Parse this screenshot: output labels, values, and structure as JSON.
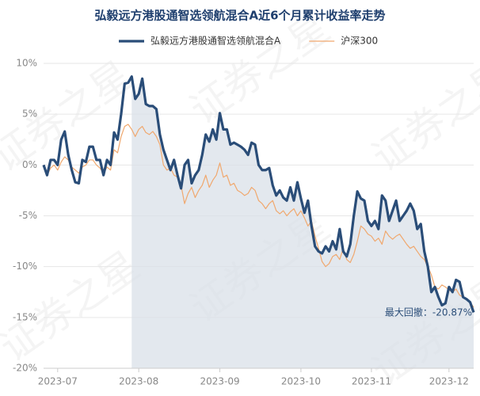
{
  "chart_data": {
    "type": "line",
    "title": "弘毅远方港股通智选领航混合A近6个月累计收益率走势",
    "watermark": "证券之星",
    "annotation": "最大回撤：-20.87%",
    "categories": [
      null,
      null,
      null,
      null,
      "2023-07",
      null,
      null,
      null,
      null,
      null,
      null,
      null,
      null,
      null,
      null,
      null,
      null,
      null,
      null,
      null,
      null,
      null,
      null,
      null,
      null,
      null,
      null,
      "2023-08",
      null,
      null,
      null,
      null,
      null,
      null,
      null,
      null,
      null,
      null,
      null,
      null,
      null,
      null,
      null,
      null,
      null,
      null,
      null,
      null,
      null,
      null,
      "2023-09",
      null,
      null,
      null,
      null,
      null,
      null,
      null,
      null,
      null,
      null,
      null,
      null,
      null,
      null,
      null,
      null,
      null,
      null,
      null,
      null,
      null,
      null,
      "2023-10",
      null,
      null,
      null,
      null,
      null,
      null,
      null,
      null,
      null,
      null,
      null,
      null,
      null,
      null,
      null,
      null,
      null,
      null,
      null,
      "2023-11",
      null,
      null,
      null,
      null,
      null,
      null,
      null,
      null,
      null,
      null,
      null,
      null,
      null,
      null,
      null,
      null,
      null,
      null,
      null,
      null,
      null,
      "2023-12",
      null,
      null,
      null,
      null,
      null,
      null,
      null
    ],
    "series": [
      {
        "name": "弘毅远方港股通智选领航混合A",
        "color": "#2a4d78",
        "width": 3.2,
        "values": [
          0,
          -1,
          0.5,
          0.5,
          0,
          2.5,
          3.3,
          1,
          -0.5,
          -1.7,
          -1.8,
          0.5,
          0.3,
          1.8,
          1.8,
          0.5,
          0.5,
          -1,
          0.5,
          0,
          3.2,
          2.5,
          5,
          8,
          8.1,
          8.7,
          6.5,
          7,
          8.5,
          6,
          5.8,
          5.8,
          5.5,
          3,
          1.5,
          0.5,
          -0.5,
          0.5,
          -1,
          -2.3,
          0,
          0.5,
          -1.8,
          -1,
          -0.5,
          1,
          3,
          2.3,
          3.5,
          2.5,
          5.1,
          3.5,
          3.5,
          2,
          2.2,
          2,
          1.8,
          1.5,
          1,
          2.2,
          2,
          0,
          -0.5,
          -0.5,
          -0.3,
          -2,
          -3,
          -2.5,
          -3.2,
          -3.5,
          -2.2,
          -3.5,
          -1.7,
          -3.3,
          -4.7,
          -3.5,
          -6,
          -8,
          -8.5,
          -8.7,
          -8,
          -8.5,
          -7.5,
          -8.3,
          -6.3,
          -8.5,
          -9,
          -7.8,
          -5,
          -2.6,
          -3.3,
          -3.5,
          -5.5,
          -6,
          -5.5,
          -6.3,
          -3,
          -3.5,
          -5.5,
          -4.5,
          -3.5,
          -5.5,
          -5,
          -4.5,
          -3.8,
          -4.5,
          -6.3,
          -5.8,
          -8.5,
          -10,
          -12.5,
          -12,
          -13,
          -13.8,
          -13.6,
          -12,
          -12.5,
          -11.3,
          -11.5,
          -13,
          -13.2,
          -13.5,
          -14.5
        ]
      },
      {
        "name": "沪深300",
        "color": "#f0a86e",
        "width": 1.2,
        "values": [
          0,
          -1,
          -0.3,
          0,
          -0.5,
          0.3,
          0.8,
          0.5,
          -0.2,
          -0.5,
          -0.8,
          -0.2,
          0,
          0.5,
          0.5,
          0,
          -0.3,
          -0.8,
          -0.2,
          -0.5,
          1.5,
          1.2,
          2.8,
          3.8,
          4,
          3.5,
          2.8,
          3.5,
          3.8,
          3.2,
          3,
          3.3,
          2.8,
          2,
          0,
          -0.5,
          -0.3,
          -1,
          -1.2,
          -2,
          -3.8,
          -2.8,
          -2.2,
          -3.2,
          -2.5,
          -2,
          -1,
          -2.2,
          -1.5,
          -1,
          0.2,
          -1.2,
          -1,
          -2,
          -1.8,
          -2.5,
          -2.7,
          -3,
          -2.8,
          -2.2,
          -2.5,
          -3.5,
          -3.8,
          -4.3,
          -3.8,
          -3.5,
          -4.5,
          -4.8,
          -4.5,
          -5,
          -4.6,
          -4.3,
          -5,
          -4.5,
          -5.2,
          -6,
          -5.5,
          -7,
          -8.2,
          -9.5,
          -10,
          -9.7,
          -9,
          -8.8,
          -9.3,
          -8.2,
          -9.3,
          -9.6,
          -8.8,
          -7.5,
          -6,
          -6.3,
          -6.8,
          -7,
          -7.5,
          -7.2,
          -7.8,
          -6.5,
          -7,
          -7.3,
          -7,
          -6.8,
          -7.3,
          -7.8,
          -8.2,
          -8,
          -8.5,
          -9,
          -9.3,
          -10,
          -10.8,
          -12,
          -12.2,
          -11.8,
          -12,
          -12.3,
          -12.5,
          -12.2,
          -12.8,
          -13,
          -13.2,
          -13.5,
          -14
        ]
      }
    ],
    "ylim": [
      -20,
      10
    ],
    "yticks": [
      {
        "value": 10,
        "label": "10%"
      },
      {
        "value": 5,
        "label": "5%"
      },
      {
        "value": 0,
        "label": "0%"
      },
      {
        "value": -5,
        "label": "-5%"
      },
      {
        "value": -10,
        "label": "-10%"
      },
      {
        "value": -15,
        "label": "-15%"
      },
      {
        "value": -20,
        "label": "-20%"
      }
    ],
    "grid": true,
    "legend": "top",
    "drawdown_fill": "#d9e0e8"
  }
}
